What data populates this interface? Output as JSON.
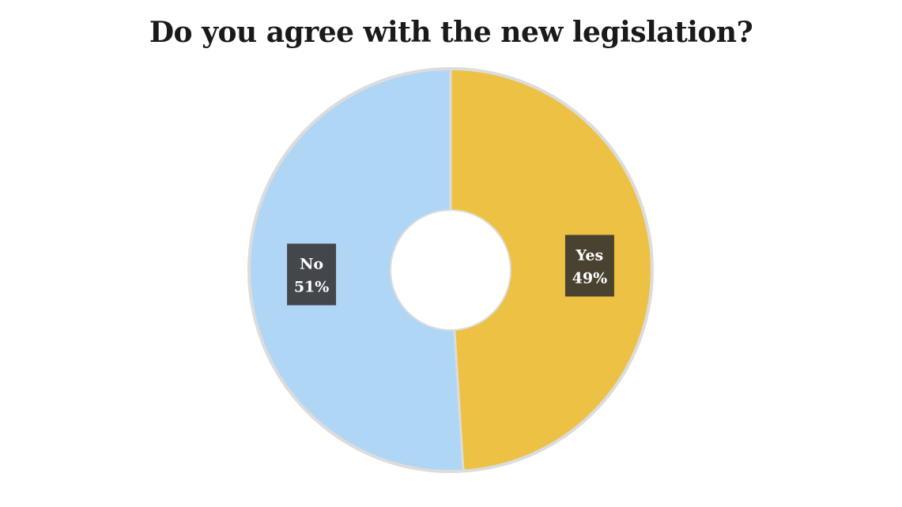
{
  "chart_data": {
    "type": "pie",
    "style": "donut",
    "title": "Do you agree with the new legislation?",
    "slices": [
      {
        "label": "Yes",
        "value": 49,
        "value_label": "49%",
        "color": "#ecc144",
        "label_box_color": "#4a4230"
      },
      {
        "label": "No",
        "value": 51,
        "value_label": "51%",
        "color": "#b0d6f6",
        "label_box_color": "#43474c"
      }
    ],
    "start_angle_deg": 0,
    "direction": "clockwise",
    "outline_color": "#dcdcdc",
    "legend": "none"
  }
}
